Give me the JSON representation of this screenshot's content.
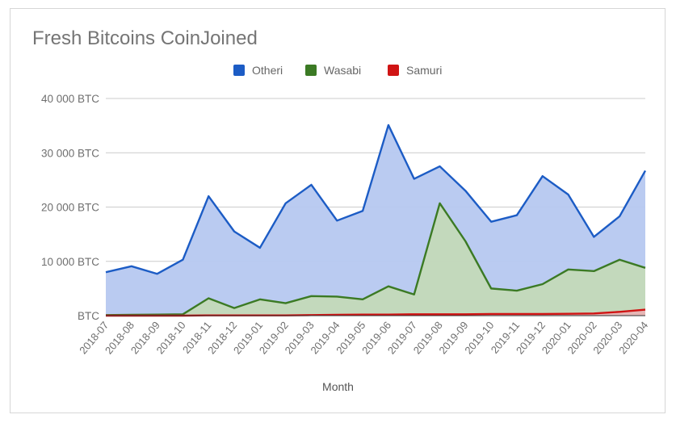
{
  "chart_data": {
    "type": "area",
    "title": "Fresh Bitcoins CoinJoined",
    "xlabel": "Month",
    "ylabel": "",
    "ylim": [
      0,
      40000
    ],
    "y_ticks": [
      {
        "value": 0,
        "label": "BTC"
      },
      {
        "value": 10000,
        "label": "10 000 BTC"
      },
      {
        "value": 20000,
        "label": "20 000 BTC"
      },
      {
        "value": 30000,
        "label": "30 000 BTC"
      },
      {
        "value": 40000,
        "label": "40 000 BTC"
      }
    ],
    "grid": true,
    "legend_position": "top",
    "categories": [
      "2018-07",
      "2018-08",
      "2018-09",
      "2018-10",
      "2018-11",
      "2018-12",
      "2019-01",
      "2019-02",
      "2019-03",
      "2019-04",
      "2019-05",
      "2019-06",
      "2019-07",
      "2019-08",
      "2019-09",
      "2019-10",
      "2019-11",
      "2019-12",
      "2020-01",
      "2020-02",
      "2020-03",
      "2020-04"
    ],
    "series": [
      {
        "name": "Otheri",
        "color": "#1c5cc5",
        "fill": "#b6c8f0",
        "values": [
          8000,
          9100,
          7700,
          10300,
          22000,
          15500,
          12500,
          20700,
          24100,
          17500,
          19300,
          35100,
          25200,
          27500,
          23000,
          17300,
          18500,
          25700,
          22300,
          14500,
          18300,
          26700
        ]
      },
      {
        "name": "Wasabi",
        "color": "#3b7a24",
        "fill": "#c3d9b8",
        "values": [
          100,
          150,
          200,
          250,
          3200,
          1400,
          3000,
          2300,
          3600,
          3500,
          3000,
          5400,
          3900,
          20700,
          13700,
          5000,
          4600,
          5800,
          8500,
          8200,
          10300,
          8800
        ]
      },
      {
        "name": "Samuri",
        "color": "#d01414",
        "fill": "#e8b4b4",
        "values": [
          0,
          0,
          0,
          0,
          50,
          50,
          50,
          50,
          100,
          150,
          200,
          200,
          250,
          250,
          250,
          300,
          300,
          300,
          350,
          400,
          700,
          1100
        ]
      }
    ]
  }
}
